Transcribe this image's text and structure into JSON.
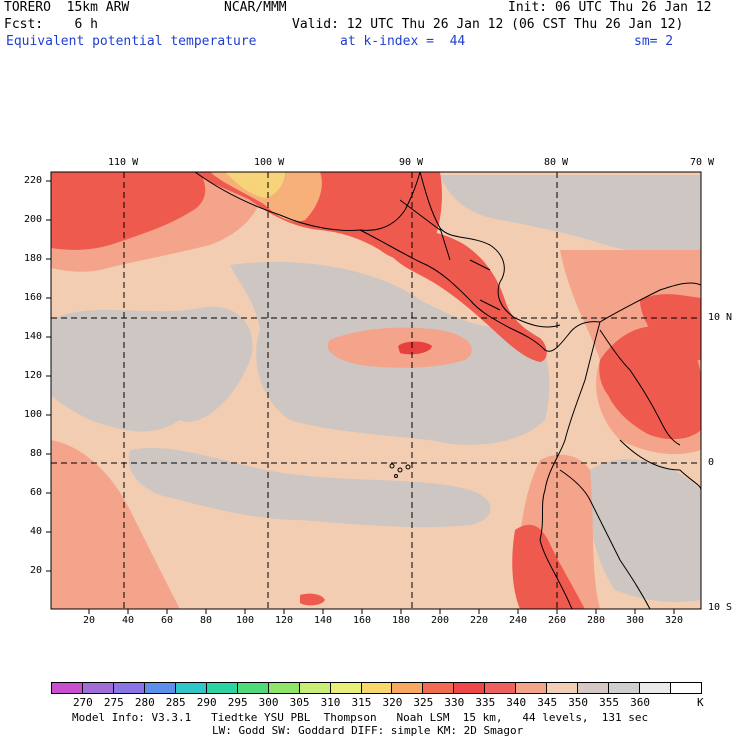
{
  "header": {
    "model": "TORERO  15km ARW",
    "org": "NCAR/MMM",
    "init": "Init: 06 UTC Thu 26 Jan 12",
    "fcst": "Fcst:    6 h",
    "valid": "Valid: 12 UTC Thu 26 Jan 12 (06 CST Thu 26 Jan 12)",
    "field": "Equivalent potential temperature",
    "level": "at k-index =  44",
    "sm": "sm= 2"
  },
  "top_lon_labels": [
    "110 W",
    "100 W",
    "90 W",
    "80 W",
    "70 W"
  ],
  "left_y_ticks": [
    "220",
    "200",
    "180",
    "160",
    "140",
    "120",
    "100",
    "80",
    "60",
    "40",
    "20"
  ],
  "bottom_x_ticks": [
    "20",
    "40",
    "60",
    "80",
    "100",
    "120",
    "140",
    "160",
    "180",
    "200",
    "220",
    "240",
    "260",
    "280",
    "300",
    "320"
  ],
  "right_lat_labels": [
    "10 N",
    "0",
    "10 S"
  ],
  "colorbar": {
    "colors": [
      "#c94fd0",
      "#a06ed6",
      "#8a74e6",
      "#5d90e8",
      "#2fc7c9",
      "#2cd4a4",
      "#4edc7a",
      "#8fe46a",
      "#c8ee78",
      "#e8f07a",
      "#f8d86a",
      "#f8a860",
      "#f26a4f",
      "#ef4747",
      "#f0605e",
      "#f4a48a",
      "#f0cfb6",
      "#d4c9c4",
      "#cfcfcf",
      "#eaeaea",
      "#ffffff"
    ],
    "labels": [
      "270",
      "275",
      "280",
      "285",
      "290",
      "295",
      "300",
      "305",
      "310",
      "315",
      "320",
      "325",
      "330",
      "335",
      "340",
      "345",
      "350",
      "355",
      "360"
    ],
    "unit": "K"
  },
  "footer": {
    "line1": "Model Info: V3.3.1   Tiedtke YSU PBL  Thompson   Noah LSM  15 km,   44 levels,  131 sec",
    "line2": "LW: Godd SW: Goddard DIFF: simple KM: 2D Smagor"
  },
  "map": {
    "colors": {
      "base": "#f3cdb2",
      "gray": "#cdc6c2",
      "salmon": "#f4a48a",
      "red": "#ef5a4f",
      "dark_red": "#e8403e",
      "orange": "#f8b07a",
      "yellow": "#f7d47a"
    }
  }
}
